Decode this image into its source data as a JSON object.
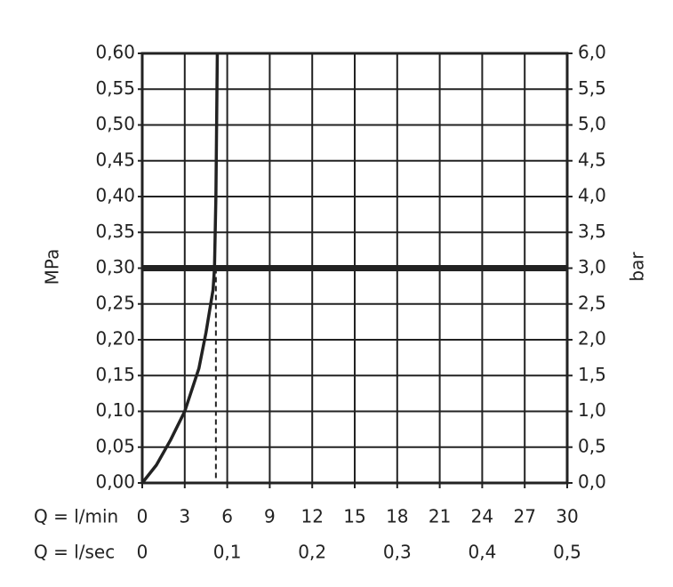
{
  "chart_data": {
    "type": "line",
    "x_label": "Q = l/min",
    "x2_label": "Q = l/sec",
    "y_label": "MPa",
    "y2_label": "bar",
    "x": [
      0,
      1,
      2,
      3,
      4,
      4.5,
      5,
      5.1,
      5.2,
      5.3
    ],
    "series": [
      {
        "color": "#222222",
        "values": [
          0,
          0.025,
          0.06,
          0.1,
          0.16,
          0.21,
          0.27,
          0.3,
          0.4,
          0.6
        ]
      }
    ],
    "xlim": [
      0,
      30
    ],
    "xticks": [
      0,
      3,
      6,
      9,
      12,
      15,
      18,
      21,
      24,
      27,
      30
    ],
    "x2lim": [
      0,
      0.5
    ],
    "x2ticks": [
      0,
      {
        "value": 0.1,
        "label": "0,1"
      },
      {
        "value": 0.2,
        "label": "0,2"
      },
      {
        "value": 0.3,
        "label": "0,3"
      },
      {
        "value": 0.4,
        "label": "0,4"
      },
      {
        "value": 0.5,
        "label": "0,5"
      }
    ],
    "ylim": [
      0,
      0.6
    ],
    "yticks": [
      {
        "value": 0,
        "label": "0,00"
      },
      {
        "value": 0.05,
        "label": "0,05"
      },
      {
        "value": 0.1,
        "label": "0,10"
      },
      {
        "value": 0.15,
        "label": "0,15"
      },
      {
        "value": 0.2,
        "label": "0,20"
      },
      {
        "value": 0.25,
        "label": "0,25"
      },
      {
        "value": 0.3,
        "label": "0,30"
      },
      {
        "value": 0.35,
        "label": "0,35"
      },
      {
        "value": 0.4,
        "label": "0,40"
      },
      {
        "value": 0.45,
        "label": "0,45"
      },
      {
        "value": 0.5,
        "label": "0,50"
      },
      {
        "value": 0.55,
        "label": "0,55"
      },
      {
        "value": 0.6,
        "label": "0,60"
      }
    ],
    "y2lim": [
      0,
      6
    ],
    "y2ticks": [
      {
        "value": 0,
        "label": "0,0"
      },
      {
        "value": 0.5,
        "label": "0,5"
      },
      {
        "value": 1,
        "label": "1,0"
      },
      {
        "value": 1.5,
        "label": "1,5"
      },
      {
        "value": 2,
        "label": "2,0"
      },
      {
        "value": 2.5,
        "label": "2,5"
      },
      {
        "value": 3,
        "label": "3,0"
      },
      {
        "value": 3.5,
        "label": "3,5"
      },
      {
        "value": 4,
        "label": "4,0"
      },
      {
        "value": 4.5,
        "label": "4,5"
      },
      {
        "value": 5,
        "label": "5,0"
      },
      {
        "value": 5.5,
        "label": "5,5"
      },
      {
        "value": 6,
        "label": "6,0"
      }
    ],
    "grid": true,
    "hline": 0.3,
    "vline": {
      "x": 5.2,
      "y_to": 0.3
    }
  }
}
